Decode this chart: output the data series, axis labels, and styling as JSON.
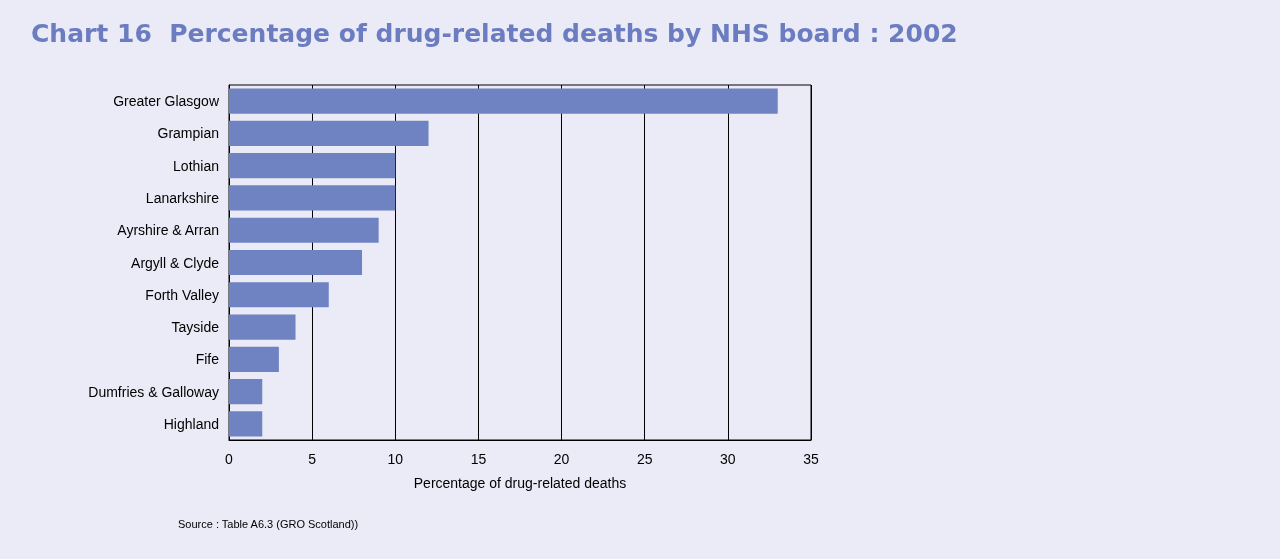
{
  "chart_data": {
    "type": "bar",
    "orientation": "horizontal",
    "title": "Chart 16  Percentage of drug-related deaths by NHS board : 2002",
    "xlabel": "Percentage of drug-related deaths",
    "categories": [
      "Greater Glasgow",
      "Grampian",
      "Lothian",
      "Lanarkshire",
      "Ayrshire & Arran",
      "Argyll & Clyde",
      "Forth Valley",
      "Tayside",
      "Fife",
      "Dumfries & Galloway",
      "Highland"
    ],
    "values": [
      33,
      12,
      10,
      10,
      9,
      8,
      6,
      4,
      3,
      2,
      2
    ],
    "color": "#6f82c2",
    "xlim": [
      0,
      35
    ],
    "xticks": [
      0,
      5,
      10,
      15,
      20,
      25,
      30,
      35
    ],
    "grid": "x",
    "annotations": [
      "Source : Table A6.3 (GRO Scotland))"
    ]
  }
}
